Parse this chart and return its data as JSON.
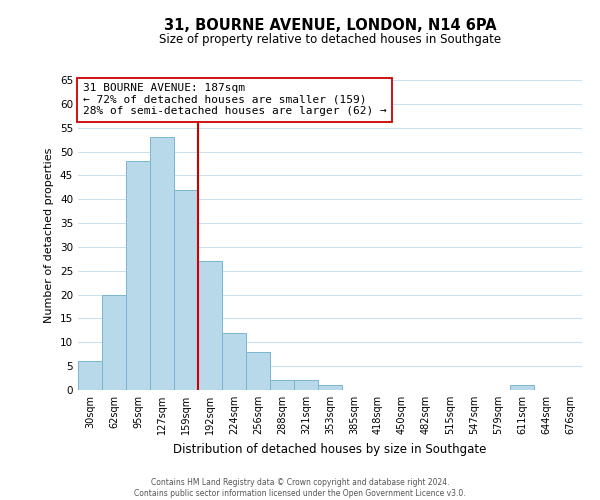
{
  "title": "31, BOURNE AVENUE, LONDON, N14 6PA",
  "subtitle": "Size of property relative to detached houses in Southgate",
  "xlabel": "Distribution of detached houses by size in Southgate",
  "ylabel": "Number of detached properties",
  "bin_labels": [
    "30sqm",
    "62sqm",
    "95sqm",
    "127sqm",
    "159sqm",
    "192sqm",
    "224sqm",
    "256sqm",
    "288sqm",
    "321sqm",
    "353sqm",
    "385sqm",
    "418sqm",
    "450sqm",
    "482sqm",
    "515sqm",
    "547sqm",
    "579sqm",
    "611sqm",
    "644sqm",
    "676sqm"
  ],
  "bin_values": [
    6,
    20,
    48,
    53,
    42,
    27,
    12,
    8,
    2,
    2,
    1,
    0,
    0,
    0,
    0,
    0,
    0,
    0,
    1,
    0,
    0
  ],
  "bar_color": "#b8d9ea",
  "bar_edge_color": "#7ab5d0",
  "vline_color": "#cc0000",
  "annotation_title": "31 BOURNE AVENUE: 187sqm",
  "annotation_line1": "← 72% of detached houses are smaller (159)",
  "annotation_line2": "28% of semi-detached houses are larger (62) →",
  "annotation_box_color": "#ffffff",
  "annotation_box_edge": "#cc0000",
  "ylim": [
    0,
    65
  ],
  "yticks": [
    0,
    5,
    10,
    15,
    20,
    25,
    30,
    35,
    40,
    45,
    50,
    55,
    60,
    65
  ],
  "footer_line1": "Contains HM Land Registry data © Crown copyright and database right 2024.",
  "footer_line2": "Contains public sector information licensed under the Open Government Licence v3.0.",
  "bg_color": "#ffffff",
  "grid_color": "#cce0ee"
}
